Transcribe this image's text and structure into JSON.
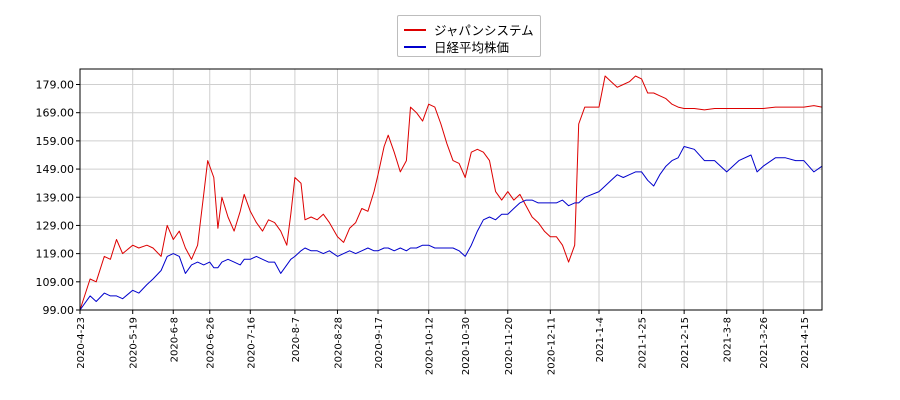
{
  "chart_data": {
    "type": "line",
    "title": "",
    "xlabel": "",
    "ylabel": "",
    "x_tick_labels": [
      "2020-4-23",
      "2020-5-19",
      "2020-6-8",
      "2020-6-26",
      "2020-7-16",
      "2020-8-7",
      "2020-8-28",
      "2020-9-17",
      "2020-10-12",
      "2020-10-30",
      "2020-11-20",
      "2020-12-11",
      "2021-1-4",
      "2021-1-25",
      "2021-2-15",
      "2021-3-8",
      "2021-3-26",
      "2021-4-15"
    ],
    "y_ticks": [
      99,
      109,
      119,
      129,
      139,
      149,
      159,
      169,
      179
    ],
    "y_tick_labels": [
      "99.00",
      "109.00",
      "119.00",
      "129.00",
      "139.00",
      "149.00",
      "159.00",
      "169.00",
      "179.00"
    ],
    "ylim": [
      99,
      184.5
    ],
    "grid": true,
    "legend_position": "top-center",
    "series": [
      {
        "name": "ジャパンシステム",
        "color": "#dd0000",
        "points": [
          [
            "2020-4-23",
            99
          ],
          [
            "2020-4-28",
            110
          ],
          [
            "2020-5-1",
            109
          ],
          [
            "2020-5-5",
            118
          ],
          [
            "2020-5-8",
            117
          ],
          [
            "2020-5-11",
            124
          ],
          [
            "2020-5-14",
            119
          ],
          [
            "2020-5-19",
            122
          ],
          [
            "2020-5-22",
            121
          ],
          [
            "2020-5-26",
            122
          ],
          [
            "2020-5-29",
            121
          ],
          [
            "2020-6-2",
            118
          ],
          [
            "2020-6-5",
            129
          ],
          [
            "2020-6-8",
            124
          ],
          [
            "2020-6-11",
            127
          ],
          [
            "2020-6-14",
            121
          ],
          [
            "2020-6-17",
            117
          ],
          [
            "2020-6-20",
            122
          ],
          [
            "2020-6-23",
            140
          ],
          [
            "2020-6-25",
            152
          ],
          [
            "2020-6-28",
            146
          ],
          [
            "2020-6-30",
            128
          ],
          [
            "2020-7-2",
            139
          ],
          [
            "2020-7-5",
            132
          ],
          [
            "2020-7-8",
            127
          ],
          [
            "2020-7-11",
            134
          ],
          [
            "2020-7-13",
            140
          ],
          [
            "2020-7-16",
            134
          ],
          [
            "2020-7-19",
            130
          ],
          [
            "2020-7-22",
            127
          ],
          [
            "2020-7-25",
            131
          ],
          [
            "2020-7-28",
            130
          ],
          [
            "2020-7-31",
            127
          ],
          [
            "2020-8-3",
            122
          ],
          [
            "2020-8-5",
            133
          ],
          [
            "2020-8-7",
            146
          ],
          [
            "2020-8-10",
            144
          ],
          [
            "2020-8-12",
            131
          ],
          [
            "2020-8-15",
            132
          ],
          [
            "2020-8-18",
            131
          ],
          [
            "2020-8-21",
            133
          ],
          [
            "2020-8-24",
            130
          ],
          [
            "2020-8-28",
            125
          ],
          [
            "2020-8-31",
            123
          ],
          [
            "2020-9-3",
            128
          ],
          [
            "2020-9-6",
            130
          ],
          [
            "2020-9-9",
            135
          ],
          [
            "2020-9-12",
            134
          ],
          [
            "2020-9-15",
            141
          ],
          [
            "2020-9-17",
            147
          ],
          [
            "2020-9-20",
            157
          ],
          [
            "2020-9-22",
            161
          ],
          [
            "2020-9-25",
            155
          ],
          [
            "2020-9-28",
            148
          ],
          [
            "2020-10-1",
            152
          ],
          [
            "2020-10-3",
            171
          ],
          [
            "2020-10-6",
            169
          ],
          [
            "2020-10-9",
            166
          ],
          [
            "2020-10-12",
            172
          ],
          [
            "2020-10-15",
            171
          ],
          [
            "2020-10-18",
            165
          ],
          [
            "2020-10-21",
            158
          ],
          [
            "2020-10-24",
            152
          ],
          [
            "2020-10-27",
            151
          ],
          [
            "2020-10-30",
            146
          ],
          [
            "2020-11-2",
            155
          ],
          [
            "2020-11-5",
            156
          ],
          [
            "2020-11-8",
            155
          ],
          [
            "2020-11-11",
            152
          ],
          [
            "2020-11-14",
            141
          ],
          [
            "2020-11-17",
            138
          ],
          [
            "2020-11-20",
            141
          ],
          [
            "2020-11-23",
            138
          ],
          [
            "2020-11-26",
            140
          ],
          [
            "2020-11-29",
            136
          ],
          [
            "2020-12-2",
            132
          ],
          [
            "2020-12-5",
            130
          ],
          [
            "2020-12-8",
            127
          ],
          [
            "2020-12-11",
            125
          ],
          [
            "2020-12-14",
            125
          ],
          [
            "2020-12-17",
            122
          ],
          [
            "2020-12-20",
            116
          ],
          [
            "2020-12-23",
            122
          ],
          [
            "2020-12-25",
            165
          ],
          [
            "2020-12-28",
            171
          ],
          [
            "2021-1-4",
            171
          ],
          [
            "2021-1-7",
            182
          ],
          [
            "2021-1-10",
            180
          ],
          [
            "2021-1-13",
            178
          ],
          [
            "2021-1-16",
            179
          ],
          [
            "2021-1-19",
            180
          ],
          [
            "2021-1-22",
            182
          ],
          [
            "2021-1-25",
            181
          ],
          [
            "2021-1-28",
            176
          ],
          [
            "2021-1-31",
            176
          ],
          [
            "2021-2-3",
            175
          ],
          [
            "2021-2-6",
            174
          ],
          [
            "2021-2-9",
            172
          ],
          [
            "2021-2-12",
            171
          ],
          [
            "2021-2-15",
            170.5
          ],
          [
            "2021-2-20",
            170.5
          ],
          [
            "2021-2-25",
            170
          ],
          [
            "2021-3-2",
            170.5
          ],
          [
            "2021-3-8",
            170.5
          ],
          [
            "2021-3-14",
            170.5
          ],
          [
            "2021-3-20",
            170.5
          ],
          [
            "2021-3-26",
            170.5
          ],
          [
            "2021-4-1",
            171
          ],
          [
            "2021-4-6",
            171
          ],
          [
            "2021-4-11",
            171
          ],
          [
            "2021-4-15",
            171
          ],
          [
            "2021-4-20",
            171.5
          ],
          [
            "2021-4-24",
            171
          ]
        ]
      },
      {
        "name": "日経平均株価",
        "color": "#0000cc",
        "points": [
          [
            "2020-4-23",
            99
          ],
          [
            "2020-4-28",
            104
          ],
          [
            "2020-5-1",
            102
          ],
          [
            "2020-5-5",
            105
          ],
          [
            "2020-5-8",
            104
          ],
          [
            "2020-5-11",
            104
          ],
          [
            "2020-5-14",
            103
          ],
          [
            "2020-5-19",
            106
          ],
          [
            "2020-5-22",
            105
          ],
          [
            "2020-5-26",
            108
          ],
          [
            "2020-5-29",
            110
          ],
          [
            "2020-6-2",
            113
          ],
          [
            "2020-6-5",
            118
          ],
          [
            "2020-6-8",
            119
          ],
          [
            "2020-6-11",
            118
          ],
          [
            "2020-6-14",
            112
          ],
          [
            "2020-6-17",
            115
          ],
          [
            "2020-6-20",
            116
          ],
          [
            "2020-6-23",
            115
          ],
          [
            "2020-6-26",
            116
          ],
          [
            "2020-6-28",
            114
          ],
          [
            "2020-6-30",
            114
          ],
          [
            "2020-7-2",
            116
          ],
          [
            "2020-7-5",
            117
          ],
          [
            "2020-7-8",
            116
          ],
          [
            "2020-7-11",
            115
          ],
          [
            "2020-7-13",
            117
          ],
          [
            "2020-7-16",
            117
          ],
          [
            "2020-7-19",
            118
          ],
          [
            "2020-7-22",
            117
          ],
          [
            "2020-7-25",
            116
          ],
          [
            "2020-7-28",
            116
          ],
          [
            "2020-7-31",
            112
          ],
          [
            "2020-8-3",
            115
          ],
          [
            "2020-8-5",
            117
          ],
          [
            "2020-8-7",
            118
          ],
          [
            "2020-8-10",
            120
          ],
          [
            "2020-8-12",
            121
          ],
          [
            "2020-8-15",
            120
          ],
          [
            "2020-8-18",
            120
          ],
          [
            "2020-8-21",
            119
          ],
          [
            "2020-8-24",
            120
          ],
          [
            "2020-8-28",
            118
          ],
          [
            "2020-8-31",
            119
          ],
          [
            "2020-9-3",
            120
          ],
          [
            "2020-9-6",
            119
          ],
          [
            "2020-9-9",
            120
          ],
          [
            "2020-9-12",
            121
          ],
          [
            "2020-9-15",
            120
          ],
          [
            "2020-9-17",
            120
          ],
          [
            "2020-9-20",
            121
          ],
          [
            "2020-9-22",
            121
          ],
          [
            "2020-9-25",
            120
          ],
          [
            "2020-9-28",
            121
          ],
          [
            "2020-10-1",
            120
          ],
          [
            "2020-10-3",
            121
          ],
          [
            "2020-10-6",
            121
          ],
          [
            "2020-10-9",
            122
          ],
          [
            "2020-10-12",
            122
          ],
          [
            "2020-10-15",
            121
          ],
          [
            "2020-10-18",
            121
          ],
          [
            "2020-10-21",
            121
          ],
          [
            "2020-10-24",
            121
          ],
          [
            "2020-10-27",
            120
          ],
          [
            "2020-10-30",
            118
          ],
          [
            "2020-11-2",
            122
          ],
          [
            "2020-11-5",
            127
          ],
          [
            "2020-11-8",
            131
          ],
          [
            "2020-11-11",
            132
          ],
          [
            "2020-11-14",
            131
          ],
          [
            "2020-11-17",
            133
          ],
          [
            "2020-11-20",
            133
          ],
          [
            "2020-11-23",
            135
          ],
          [
            "2020-11-26",
            137
          ],
          [
            "2020-11-29",
            138
          ],
          [
            "2020-12-2",
            138
          ],
          [
            "2020-12-5",
            137
          ],
          [
            "2020-12-8",
            137
          ],
          [
            "2020-12-11",
            137
          ],
          [
            "2020-12-14",
            137
          ],
          [
            "2020-12-17",
            138
          ],
          [
            "2020-12-20",
            136
          ],
          [
            "2020-12-23",
            137
          ],
          [
            "2020-12-25",
            137
          ],
          [
            "2020-12-28",
            139
          ],
          [
            "2021-1-4",
            141
          ],
          [
            "2021-1-7",
            143
          ],
          [
            "2021-1-10",
            145
          ],
          [
            "2021-1-13",
            147
          ],
          [
            "2021-1-16",
            146
          ],
          [
            "2021-1-19",
            147
          ],
          [
            "2021-1-22",
            148
          ],
          [
            "2021-1-25",
            148
          ],
          [
            "2021-1-28",
            145
          ],
          [
            "2021-1-31",
            143
          ],
          [
            "2021-2-3",
            147
          ],
          [
            "2021-2-6",
            150
          ],
          [
            "2021-2-9",
            152
          ],
          [
            "2021-2-12",
            153
          ],
          [
            "2021-2-15",
            157
          ],
          [
            "2021-2-20",
            156
          ],
          [
            "2021-2-25",
            152
          ],
          [
            "2021-3-2",
            152
          ],
          [
            "2021-3-8",
            148
          ],
          [
            "2021-3-14",
            152
          ],
          [
            "2021-3-20",
            154
          ],
          [
            "2021-3-23",
            148
          ],
          [
            "2021-3-26",
            150
          ],
          [
            "2021-4-1",
            153
          ],
          [
            "2021-4-6",
            153
          ],
          [
            "2021-4-11",
            152
          ],
          [
            "2021-4-15",
            152
          ],
          [
            "2021-4-20",
            148
          ],
          [
            "2021-4-24",
            150
          ]
        ]
      }
    ]
  }
}
